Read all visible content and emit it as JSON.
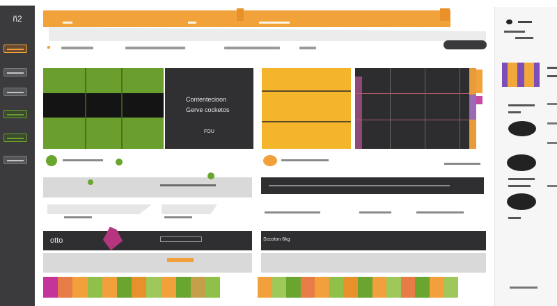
{
  "app": {
    "logo_text": "ñ2"
  },
  "sidebar": {
    "items": [
      {
        "icon": "orange-bar-icon",
        "active": true
      },
      {
        "icon": "list-icon"
      },
      {
        "icon": "folder-icon"
      },
      {
        "icon": "chart-icon"
      },
      {
        "icon": "image-icon"
      },
      {
        "icon": "settings-icon"
      }
    ]
  },
  "main": {
    "dark_panel": {
      "line1": "Contentecioon",
      "line2": "Gerve cocketos",
      "line3": "FOU"
    },
    "dark_bar_left": {
      "label": "otto"
    },
    "dark_bar_right": {
      "label": "Sccoton  6kg"
    }
  },
  "colors": {
    "accent": "#f1a23a",
    "green": "#6a9f2e",
    "dark": "#303033",
    "yellow": "#f4b52d",
    "purple": "#7d4eb8",
    "magenta": "#b5367f"
  }
}
